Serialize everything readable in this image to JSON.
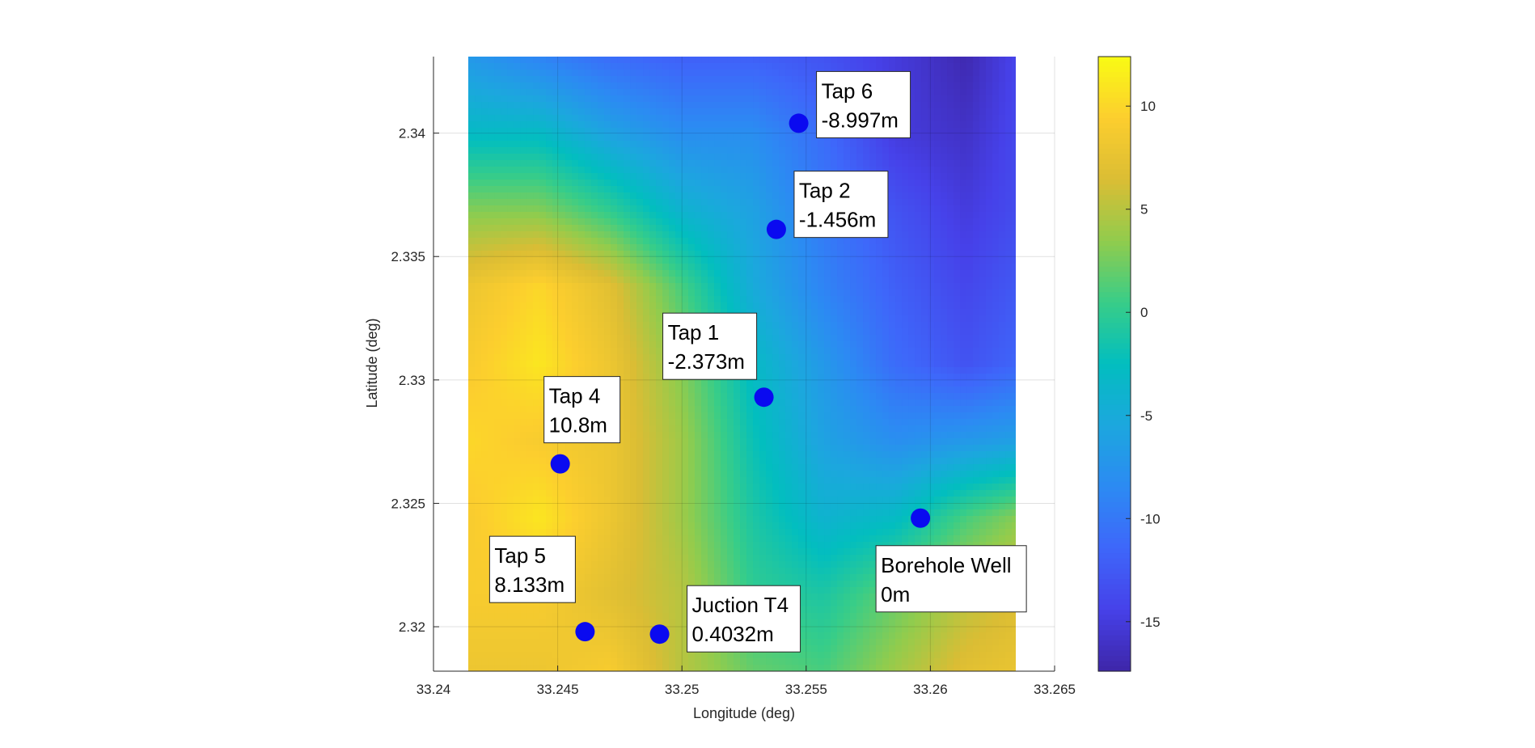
{
  "chart_data": {
    "type": "heatmap",
    "xlabel": "Longitude (deg)",
    "ylabel": "Latitude (deg)",
    "xlim": [
      33.24,
      33.265
    ],
    "ylim": [
      2.3182,
      2.3431
    ],
    "grid": true,
    "x_ticks": [
      "33.24",
      "33.245",
      "33.25",
      "33.255",
      "33.26",
      "33.265"
    ],
    "y_ticks": [
      "2.32",
      "2.325",
      "2.33",
      "2.335",
      "2.34"
    ],
    "data_extent": {
      "lon": [
        33.2414,
        33.2643
      ],
      "lat": [
        2.3182,
        2.3431
      ]
    },
    "colorbar": {
      "colormap": "parula",
      "range": [
        -17.4,
        12.4
      ],
      "ticks": [
        "-15",
        "-10",
        "-5",
        "0",
        "5",
        "10"
      ],
      "position": "right"
    },
    "elevation_grid": {
      "lon": [
        33.2414,
        33.2443,
        33.2471,
        33.25,
        33.2529,
        33.2557,
        33.2586,
        33.2614,
        33.2643
      ],
      "lat": [
        2.3431,
        2.3399,
        2.3368,
        2.3337,
        2.3306,
        2.3275,
        2.3244,
        2.3213,
        2.3182
      ],
      "values": [
        [
          -7,
          -9,
          -11,
          -12,
          -12,
          -13,
          -15,
          -17,
          -13
        ],
        [
          -3,
          -3,
          -6,
          -8,
          -8,
          -11,
          -15,
          -16,
          -13
        ],
        [
          3,
          3,
          0,
          -4,
          -6,
          -10,
          -13,
          -15,
          -13
        ],
        [
          8,
          10,
          7,
          1,
          -5,
          -9,
          -12,
          -14,
          -12
        ],
        [
          9,
          11,
          8,
          3,
          -3,
          -7,
          -11,
          -13,
          -11
        ],
        [
          10,
          9,
          8,
          4,
          -2,
          -6,
          -8,
          -7,
          -6
        ],
        [
          9,
          11,
          8,
          4,
          -1,
          -4,
          -3,
          1,
          4
        ],
        [
          9,
          9,
          7,
          5,
          0,
          -1,
          2,
          5,
          7
        ],
        [
          8,
          8,
          9,
          5,
          2,
          1,
          4,
          7,
          8
        ]
      ]
    },
    "points": [
      {
        "name": "Tap 6",
        "value": "-8.997m",
        "lon": 33.2547,
        "lat": 2.3404
      },
      {
        "name": "Tap 2",
        "value": "-1.456m",
        "lon": 33.2538,
        "lat": 2.3361
      },
      {
        "name": "Tap 1",
        "value": "-2.373m",
        "lon": 33.2533,
        "lat": 2.3293
      },
      {
        "name": "Tap 4",
        "value": "10.8m",
        "lon": 33.2451,
        "lat": 2.3266
      },
      {
        "name": "Borehole Well",
        "value": "0m",
        "lon": 33.2596,
        "lat": 2.3244
      },
      {
        "name": "Tap 5",
        "value": "8.133m",
        "lon": 33.2461,
        "lat": 2.3198
      },
      {
        "name": "Juction T4",
        "value": "0.4032m",
        "lon": 33.2491,
        "lat": 2.3197
      }
    ],
    "marker_color": "#0a0af0"
  }
}
